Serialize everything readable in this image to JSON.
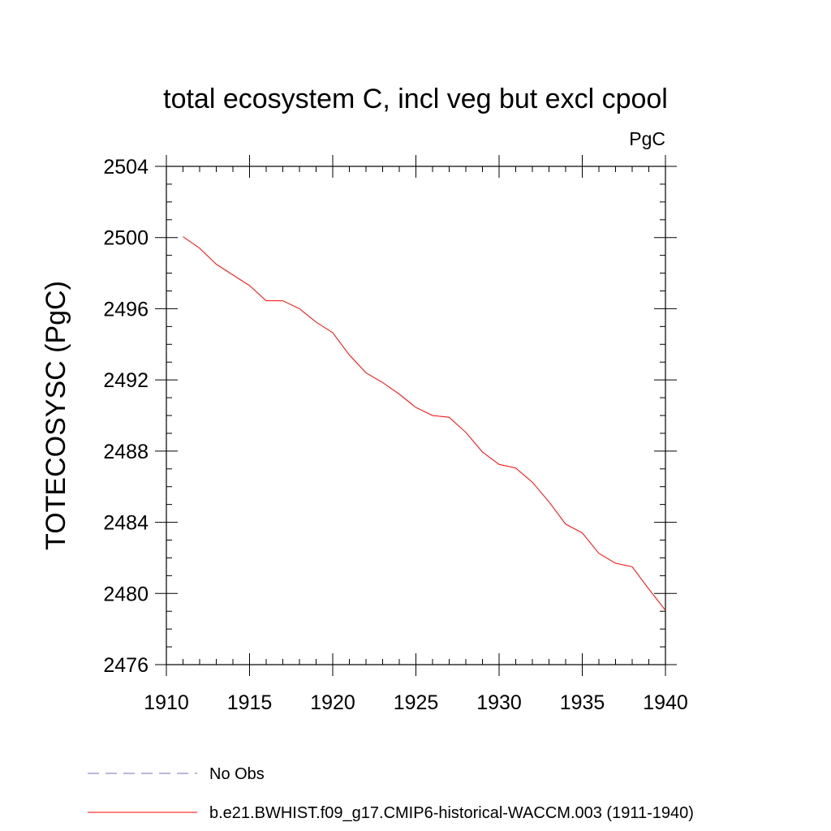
{
  "chart_data": {
    "type": "line",
    "title": "total ecosystem C, incl veg but excl cpool",
    "units": "PgC",
    "ylabel": "TOTECOSYSC  (PgC)",
    "xlabel": "",
    "xlim": [
      1910,
      1940
    ],
    "ylim": [
      2476,
      2504
    ],
    "x_ticks": [
      1910,
      1915,
      1920,
      1925,
      1930,
      1935,
      1940
    ],
    "y_ticks": [
      2476,
      2480,
      2484,
      2488,
      2492,
      2496,
      2500,
      2504
    ],
    "x_tick_labels": [
      "1910",
      "1915",
      "1920",
      "1925",
      "1930",
      "1935",
      "1940"
    ],
    "y_tick_labels": [
      "2476",
      "2480",
      "2484",
      "2488",
      "2492",
      "2496",
      "2500",
      "2504"
    ],
    "grid": false,
    "legend_position": "bottom-left",
    "legend": [
      {
        "label": "No Obs",
        "color": "#7b6fb0",
        "style": "dashed"
      },
      {
        "label": "b.e21.BWHIST.f09_g17.CMIP6-historical-WACCM.003 (1911-1940)",
        "color": "#ff0000",
        "style": "solid"
      }
    ],
    "series": [
      {
        "name": "b.e21.BWHIST.f09_g17.CMIP6-historical-WACCM.003 (1911-1940)",
        "color": "#ff0000",
        "x": [
          1911,
          1912,
          1913,
          1914,
          1915,
          1916,
          1917,
          1918,
          1919,
          1920,
          1921,
          1922,
          1923,
          1924,
          1925,
          1926,
          1927,
          1928,
          1929,
          1930,
          1931,
          1932,
          1933,
          1934,
          1935,
          1936,
          1937,
          1938,
          1939,
          1940
        ],
        "y": [
          2500.05,
          2499.4,
          2498.5,
          2497.9,
          2497.3,
          2496.45,
          2496.45,
          2496.0,
          2495.25,
          2494.65,
          2493.4,
          2492.4,
          2491.85,
          2491.2,
          2490.45,
          2490.0,
          2489.9,
          2489.05,
          2487.95,
          2487.25,
          2487.05,
          2486.25,
          2485.15,
          2483.9,
          2483.4,
          2482.25,
          2481.7,
          2481.5,
          2480.25,
          2479.05
        ]
      }
    ]
  }
}
